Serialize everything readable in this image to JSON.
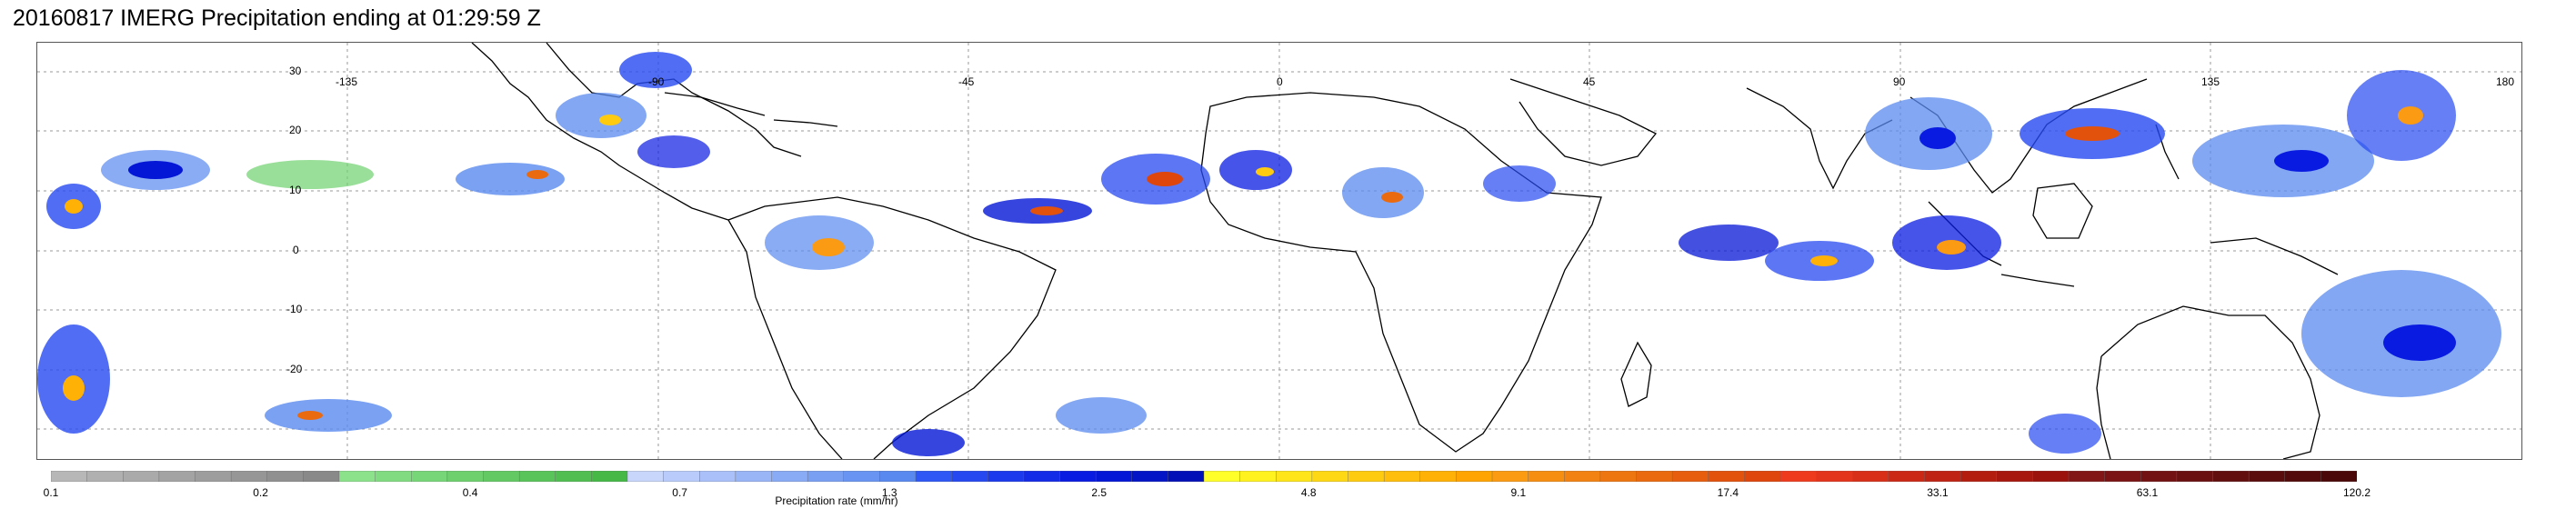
{
  "title": "20160817 IMERG Precipitation ending at 01:29:59 Z",
  "map": {
    "lon_labels": [
      "-135",
      "-90",
      "-45",
      "0",
      "45",
      "90",
      "135",
      "180"
    ],
    "lat_labels": [
      "30",
      "20",
      "10",
      "0",
      "-10",
      "-20"
    ],
    "grid": "dotted",
    "extent": {
      "lon": [
        -180,
        180
      ],
      "lat": [
        -35,
        35
      ]
    }
  },
  "legend": {
    "caption": "Precipitation rate (mm/hr)",
    "ticks": [
      "0.1",
      "0.2",
      "0.4",
      "0.7",
      "1.3",
      "2.5",
      "4.8",
      "9.1",
      "17.4",
      "33.1",
      "63.1",
      "120.2"
    ],
    "colors": [
      "#b7b7b7",
      "#b0b0b0",
      "#aaaaaa",
      "#a3a3a3",
      "#9d9d9d",
      "#969696",
      "#909090",
      "#898989",
      "#8be28b",
      "#81dc81",
      "#77d677",
      "#6dd06d",
      "#63ca63",
      "#59c459",
      "#50be50",
      "#46b846",
      "#c9d6fb",
      "#b9cbfa",
      "#a9c0f8",
      "#99b5f6",
      "#89aaf5",
      "#799ff3",
      "#6994f1",
      "#5989ef",
      "#2e57f5",
      "#2548f0",
      "#1c39eb",
      "#132ae6",
      "#0a1be1",
      "#0416d6",
      "#0313c6",
      "#0210b7",
      "#ffff2a",
      "#fff21f",
      "#ffe51a",
      "#ffd815",
      "#ffcb10",
      "#ffbe0b",
      "#ffb106",
      "#ffa401",
      "#fb9a13",
      "#f68e12",
      "#f28211",
      "#ee7610",
      "#ea6a0f",
      "#e65e0e",
      "#e2520d",
      "#de460c",
      "#ef3b1d",
      "#e3351b",
      "#d72f18",
      "#cb2916",
      "#bf2313",
      "#b31d10",
      "#a7170e",
      "#9b110b",
      "#821616",
      "#7a1414",
      "#721212",
      "#6a1010",
      "#620e0e",
      "#5a0c0c",
      "#520a0a",
      "#4a0808"
    ]
  }
}
